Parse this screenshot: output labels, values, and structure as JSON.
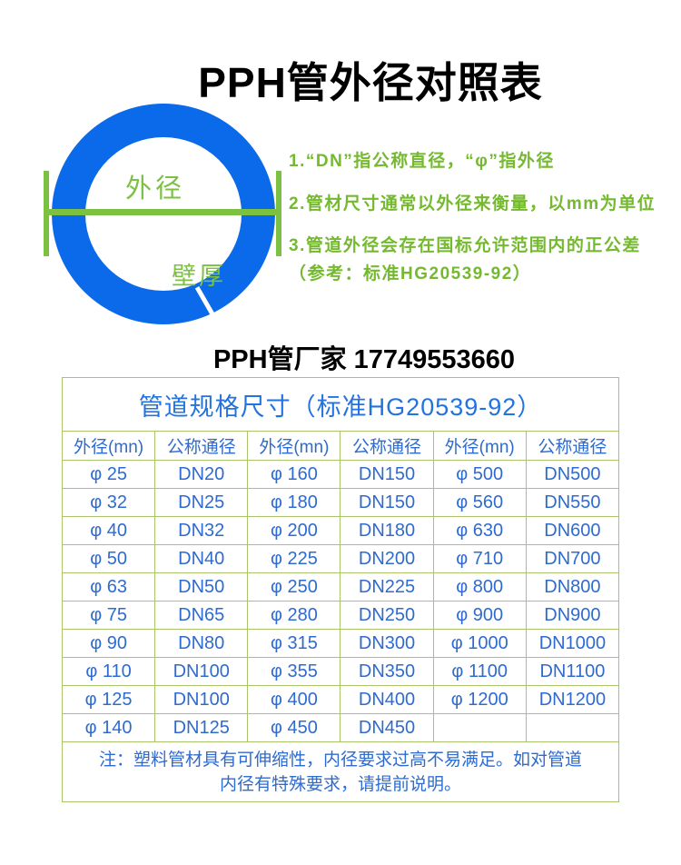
{
  "page": {
    "title": "PPH管外径对照表",
    "vendor_line": "PPH管厂家 17749553660"
  },
  "diagram": {
    "outer_diameter_label": "外径",
    "wall_thickness_label": "壁厚",
    "ring_color": "#0b6ae9",
    "annotation_color": "#7cc142"
  },
  "notes": {
    "color": "#74b92e",
    "items": [
      "1.“DN”指公称直径，“φ”指外径",
      "2.管材尺寸通常以外径来衡量，以mm为单位",
      "3.管道外径会存在国标允许范围内的正公差",
      "（参考：标准HG20539-92）"
    ]
  },
  "table": {
    "title": "管道规格尺寸（标准HG20539-92）",
    "title_color": "#2273e0",
    "text_color": "#2e6bd0",
    "border_color": "#a9c46a",
    "headers": [
      "外径(mn)",
      "公称通径",
      "外径(mn)",
      "公称通径",
      "外径(mn)",
      "公称通径"
    ],
    "rows": [
      [
        "φ 25",
        "DN20",
        "φ 160",
        "DN150",
        "φ 500",
        "DN500"
      ],
      [
        "φ 32",
        "DN25",
        "φ 180",
        "DN150",
        "φ 560",
        "DN550"
      ],
      [
        "φ 40",
        "DN32",
        "φ 200",
        "DN180",
        "φ 630",
        "DN600"
      ],
      [
        "φ 50",
        "DN40",
        "φ 225",
        "DN200",
        "φ 710",
        "DN700"
      ],
      [
        "φ 63",
        "DN50",
        "φ 250",
        "DN225",
        "φ 800",
        "DN800"
      ],
      [
        "φ 75",
        "DN65",
        "φ 280",
        "DN250",
        "φ 900",
        "DN900"
      ],
      [
        "φ 90",
        "DN80",
        "φ 315",
        "DN300",
        "φ 1000",
        "DN1000"
      ],
      [
        "φ 110",
        "DN100",
        "φ 355",
        "DN350",
        "φ 1100",
        "DN1100"
      ],
      [
        "φ 125",
        "DN100",
        "φ 400",
        "DN400",
        "φ 1200",
        "DN1200"
      ],
      [
        "φ 140",
        "DN125",
        "φ 450",
        "DN450",
        "",
        ""
      ]
    ],
    "note_lines": [
      "注：塑料管材具有可伸缩性，内径要求过高不易满足。如对管道",
      "内径有特殊要求，请提前说明。"
    ]
  }
}
